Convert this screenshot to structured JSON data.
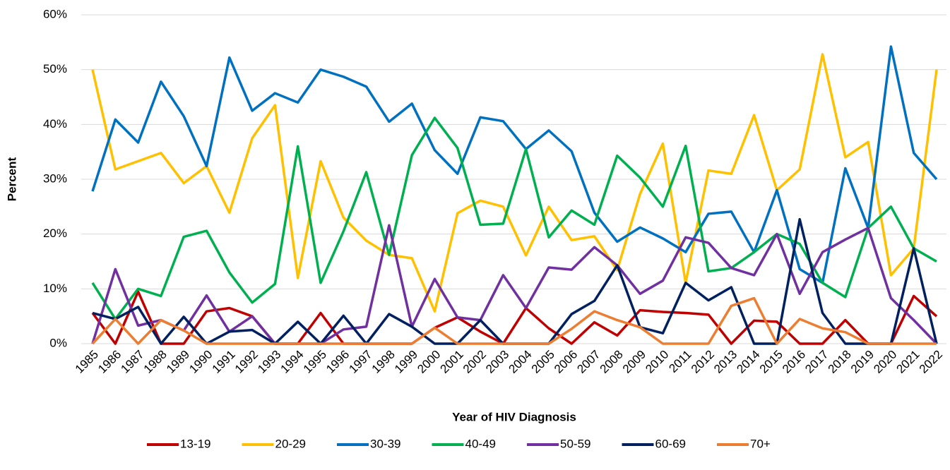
{
  "chart_data": {
    "type": "line",
    "y_label": "Percent",
    "x_label": "Year of HIV Diagnosis",
    "categories": [
      "1985",
      "1986",
      "1987",
      "1988",
      "1989",
      "1990",
      "1991",
      "1992",
      "1993",
      "1994",
      "1995",
      "1996",
      "1997",
      "1998",
      "1999",
      "2000",
      "2001",
      "2002",
      "2003",
      "2004",
      "2005",
      "2006",
      "2007",
      "2008",
      "2009",
      "2010",
      "2011",
      "2012",
      "2013",
      "2014",
      "2015",
      "2016",
      "2017",
      "2018",
      "2019",
      "2020",
      "2021",
      "2022"
    ],
    "series": [
      {
        "name": "13-19",
        "color": "#c00000",
        "values": [
          5.6,
          0,
          9.5,
          0,
          0,
          5.9,
          6.5,
          5,
          0,
          0,
          5.6,
          0,
          0,
          0,
          0,
          2.9,
          4.8,
          2.2,
          0,
          6.5,
          2.8,
          0,
          3.9,
          1.5,
          6.1,
          5.8,
          5.6,
          5.3,
          0,
          4.2,
          4,
          0,
          0,
          4.3,
          0,
          0,
          8.7,
          5
        ]
      },
      {
        "name": "20-29",
        "color": "#ffc000",
        "values": [
          50,
          31.8,
          33.3,
          34.8,
          29.3,
          32.4,
          23.9,
          37.5,
          43.5,
          12,
          33.3,
          23,
          18.8,
          16.2,
          15.6,
          5.9,
          23.8,
          26.1,
          25,
          16.1,
          25,
          18.9,
          19.6,
          13.4,
          27.3,
          36.5,
          11.1,
          31.6,
          31,
          41.7,
          28,
          31.8,
          52.8,
          34,
          36.8,
          12.5,
          17.4,
          50
        ]
      },
      {
        "name": "30-39",
        "color": "#0070c0",
        "values": [
          27.8,
          40.9,
          36.7,
          47.8,
          41.5,
          32.4,
          52.2,
          42.5,
          45.7,
          44,
          50,
          48.7,
          46.9,
          40.5,
          43.8,
          35.3,
          31,
          41.3,
          40.6,
          35.5,
          38.9,
          35.1,
          23.9,
          18.6,
          21.2,
          19.2,
          16.7,
          23.7,
          24.1,
          16.7,
          28,
          13.6,
          11.1,
          32,
          21.1,
          54.2,
          34.8,
          30
        ]
      },
      {
        "name": "40-49",
        "color": "#00b050",
        "values": [
          11.1,
          4.5,
          10,
          8.7,
          19.5,
          20.6,
          13,
          7.5,
          10.9,
          36,
          11.1,
          20.5,
          31.3,
          16.2,
          34.4,
          41.2,
          35.7,
          21.7,
          21.9,
          35.5,
          19.4,
          24.3,
          21.7,
          34.3,
          30.3,
          25,
          36.1,
          13.2,
          13.8,
          16.7,
          20,
          18.2,
          11.1,
          8.5,
          21.1,
          25,
          17.4,
          15
        ]
      },
      {
        "name": "50-59",
        "color": "#7030a0",
        "values": [
          0,
          13.6,
          3.3,
          4.3,
          2.4,
          8.8,
          2.2,
          5,
          0,
          0,
          0,
          2.6,
          3.1,
          21.6,
          3.1,
          11.8,
          4.8,
          4.3,
          12.5,
          6.5,
          13.9,
          13.5,
          17.6,
          14.3,
          9.1,
          11.5,
          19.4,
          18.4,
          13.8,
          12.5,
          20,
          9.1,
          16.7,
          19,
          21.1,
          8.3,
          4.3,
          0
        ]
      },
      {
        "name": "60-69",
        "color": "#002060",
        "values": [
          5.6,
          4.5,
          6.7,
          0,
          4.9,
          0,
          2.2,
          2.5,
          0,
          4,
          0,
          5.1,
          0,
          5.4,
          3.1,
          0,
          0,
          4.3,
          0,
          0,
          0,
          5.4,
          7.8,
          14.3,
          3,
          1.9,
          11.1,
          7.9,
          10.3,
          0,
          0,
          22.7,
          5.6,
          0,
          0,
          0,
          17.4,
          0
        ]
      },
      {
        "name": "70+",
        "color": "#ed7d31",
        "values": [
          0,
          4.5,
          0,
          4.3,
          2.4,
          0,
          0,
          0,
          0,
          0,
          0,
          0,
          0,
          0,
          0,
          2.9,
          0,
          0,
          0,
          0,
          0,
          2.7,
          5.9,
          4.3,
          3,
          0,
          0,
          0,
          6.9,
          8.3,
          0,
          4.5,
          2.8,
          2.1,
          0,
          0,
          0,
          0
        ]
      }
    ],
    "ylim": [
      0,
      60
    ],
    "yticks": [
      {
        "value": 0,
        "label": "0%"
      },
      {
        "value": 10,
        "label": "10%"
      },
      {
        "value": 20,
        "label": "20%"
      },
      {
        "value": 30,
        "label": "30%"
      },
      {
        "value": 40,
        "label": "40%"
      },
      {
        "value": 50,
        "label": "50%"
      },
      {
        "value": 60,
        "label": "60%"
      }
    ],
    "grid": true
  }
}
